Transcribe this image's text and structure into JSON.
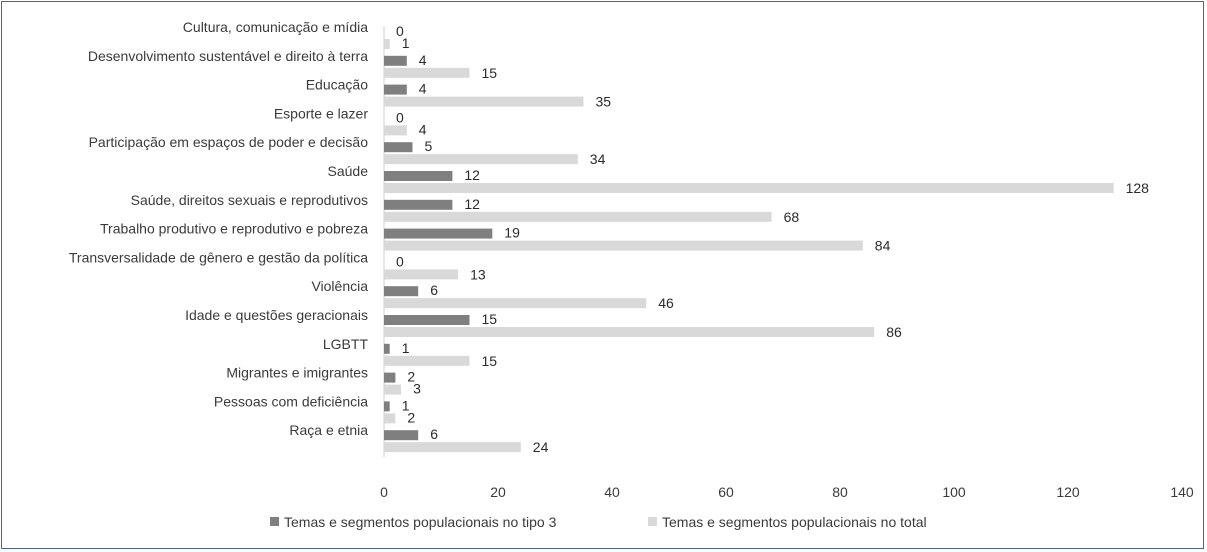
{
  "chart_data": {
    "type": "bar",
    "orientation": "horizontal",
    "categories": [
      "Cultura, comunicação e mídia",
      "Desenvolvimento sustentável e direito à terra",
      "Educação",
      "Esporte e lazer",
      "Participação em espaços de poder e decisão",
      "Saúde",
      "Saúde, direitos sexuais e reprodutivos",
      "Trabalho produtivo e reprodutivo e pobreza",
      "Transversalidade de gênero e gestão da política",
      "Violência",
      "Idade e questões geracionais",
      "LGBTT",
      "Migrantes e imigrantes",
      "Pessoas com deficiência",
      "Raça e etnia"
    ],
    "series": [
      {
        "name": "Temas e segmentos populacionais no tipo 3",
        "color": "#7f7f7f",
        "values": [
          0,
          4,
          4,
          0,
          5,
          12,
          12,
          19,
          0,
          6,
          15,
          1,
          2,
          1,
          6
        ],
        "labels": [
          "0",
          "4",
          "4",
          "0",
          "5",
          "12",
          "12",
          "19",
          "0",
          "6",
          "15",
          "1",
          "2",
          "1",
          "6"
        ]
      },
      {
        "name": "Temas e segmentos populacionais no total",
        "color": "#d9d9d9",
        "values": [
          1,
          15,
          35,
          4,
          34,
          128,
          68,
          84,
          13,
          46,
          86,
          15,
          3,
          2,
          24
        ],
        "labels": [
          "1",
          "15",
          "35",
          "4",
          "34",
          "128",
          "68",
          "84",
          "13",
          "46",
          "86",
          "15",
          "3",
          "2",
          "24"
        ]
      }
    ],
    "xlim": [
      0,
      140
    ],
    "xticks": [
      "0",
      "20",
      "40",
      "60",
      "80",
      "100",
      "120",
      "140"
    ],
    "grid": false,
    "legend": "bottom"
  }
}
